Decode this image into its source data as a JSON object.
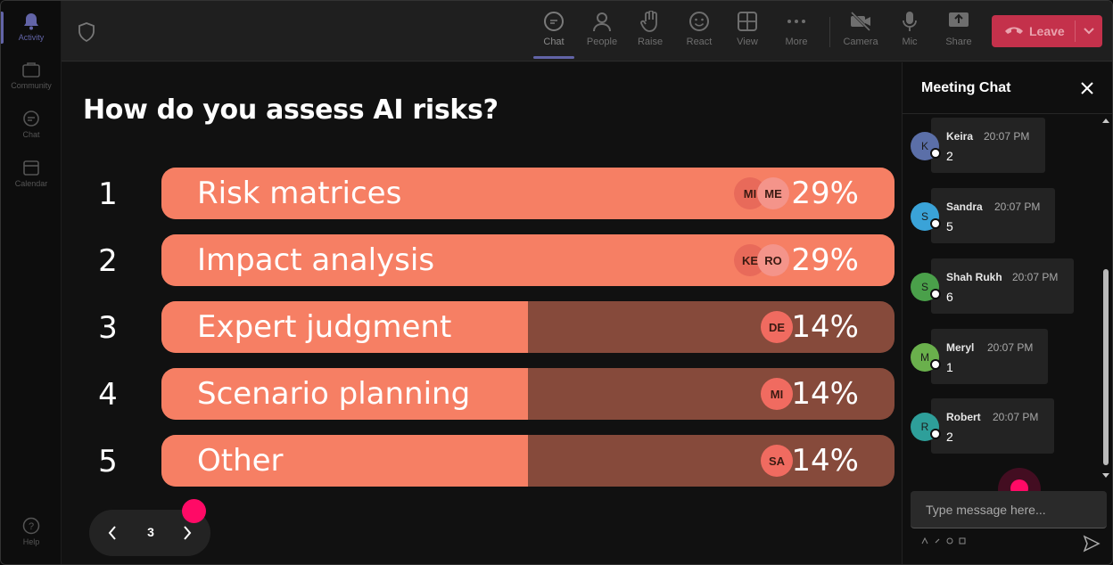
{
  "rail": {
    "items": [
      {
        "label": "Activity",
        "icon": "bell-icon"
      },
      {
        "label": "Community",
        "icon": "community-icon"
      },
      {
        "label": "Chat",
        "icon": "chat-icon"
      },
      {
        "label": "Calendar",
        "icon": "calendar-icon"
      }
    ],
    "help": "Help"
  },
  "toolbar": {
    "buttons": [
      {
        "label": "Chat",
        "icon": "chat-icon"
      },
      {
        "label": "People",
        "icon": "people-icon"
      },
      {
        "label": "Raise",
        "icon": "raise-hand-icon"
      },
      {
        "label": "React",
        "icon": "smiley-icon"
      },
      {
        "label": "View",
        "icon": "grid-view-icon"
      },
      {
        "label": "More",
        "icon": "more-dots-icon"
      },
      {
        "label": "Camera",
        "icon": "camera-off-icon"
      },
      {
        "label": "Mic",
        "icon": "mic-icon"
      },
      {
        "label": "Share",
        "icon": "share-icon"
      }
    ],
    "leave_label": "Leave",
    "accent": "#6264a7",
    "leave_color": "#c4314b"
  },
  "poll": {
    "question": "How do you assess AI risks?",
    "options": [
      {
        "rank": "1",
        "label": "Risk matrices",
        "percent_text": "29%",
        "percent": 29,
        "avatars": [
          "MI",
          "ME"
        ]
      },
      {
        "rank": "2",
        "label": "Impact analysis",
        "percent_text": "29%",
        "percent": 29,
        "avatars": [
          "KE",
          "RO"
        ]
      },
      {
        "rank": "3",
        "label": "Expert judgment",
        "percent_text": "14%",
        "percent": 14,
        "avatars": [
          "DE"
        ]
      },
      {
        "rank": "4",
        "label": "Scenario planning",
        "percent_text": "14%",
        "percent": 14,
        "avatars": [
          "MI"
        ]
      },
      {
        "rank": "5",
        "label": "Other",
        "percent_text": "14%",
        "percent": 14,
        "avatars": [
          "SA"
        ]
      }
    ],
    "bar_color": "#f67f64",
    "track_color": "#864a3b"
  },
  "pager": {
    "page": "3"
  },
  "chat": {
    "title": "Meeting Chat",
    "placeholder": "Type message here...",
    "messages": [
      {
        "initial": "K",
        "name": "Keira",
        "time": "20:07 PM",
        "text": "2",
        "color": "#5b6fa8"
      },
      {
        "initial": "S",
        "name": "Sandra",
        "time": "20:07 PM",
        "text": "5",
        "color": "#3aa3d8"
      },
      {
        "initial": "S",
        "name": "Shah Rukh",
        "time": "20:07 PM",
        "text": "6",
        "color": "#4aa04a"
      },
      {
        "initial": "M",
        "name": "Meryl",
        "time": "20:07 PM",
        "text": "1",
        "color": "#6ab04c"
      },
      {
        "initial": "R",
        "name": "Robert",
        "time": "20:07 PM",
        "text": "2",
        "color": "#2e9f9a"
      }
    ]
  }
}
